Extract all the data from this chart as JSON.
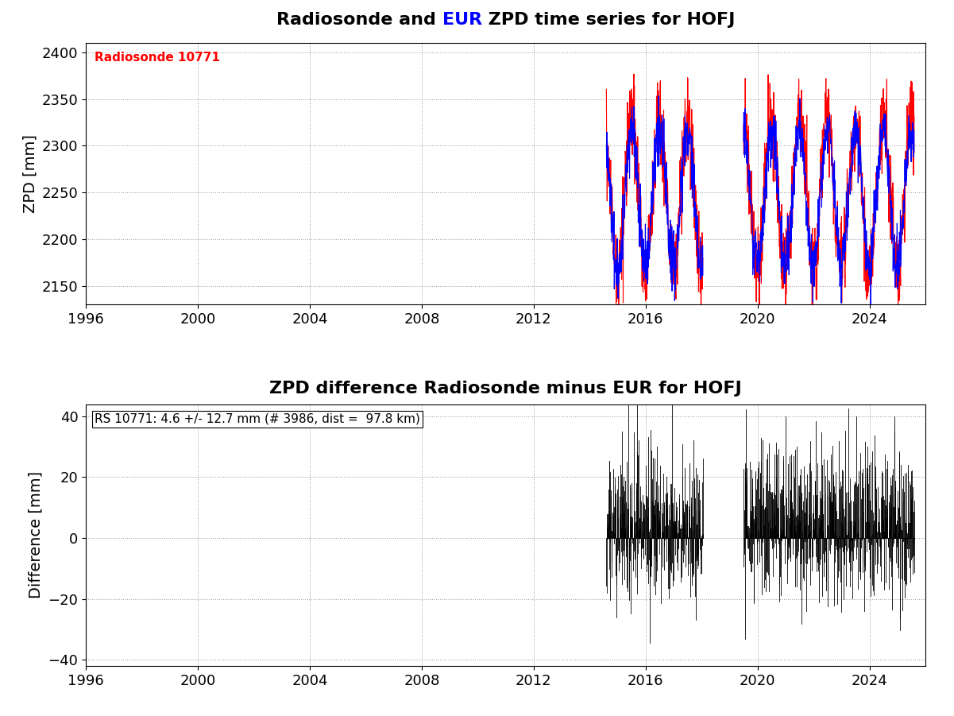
{
  "title1_part1": "Radiosonde and ",
  "title1_part2": "EUR",
  "title1_part3": " ZPD time series for HOFJ",
  "title2": "ZPD difference Radiosonde minus EUR for HOFJ",
  "ylabel1": "ZPD [mm]",
  "ylabel2": "Difference [mm]",
  "xlim": [
    1996,
    2026
  ],
  "xticks": [
    1996,
    2000,
    2004,
    2008,
    2012,
    2016,
    2020,
    2024
  ],
  "ylim1": [
    2130,
    2410
  ],
  "yticks1": [
    2150,
    2200,
    2250,
    2300,
    2350,
    2400
  ],
  "ylim2": [
    -42,
    44
  ],
  "yticks2": [
    -40,
    -20,
    0,
    20,
    40
  ],
  "radiosonde_label": "Radiosonde 10771",
  "annotation2": "RS 10771: 4.6 +/- 12.7 mm (# 3986, dist =  97.8 km)",
  "red_color": "#ff0000",
  "blue_color": "#0000ff",
  "black_color": "#000000",
  "title_fontsize": 16,
  "label_fontsize": 14,
  "tick_fontsize": 13,
  "annotation_fontsize": 11,
  "seg1_start": 2014.6,
  "seg1_end": 2018.05,
  "seg2_start": 2019.5,
  "seg2_end": 2025.6,
  "n_points_seg1": 380,
  "n_points_seg2": 680
}
